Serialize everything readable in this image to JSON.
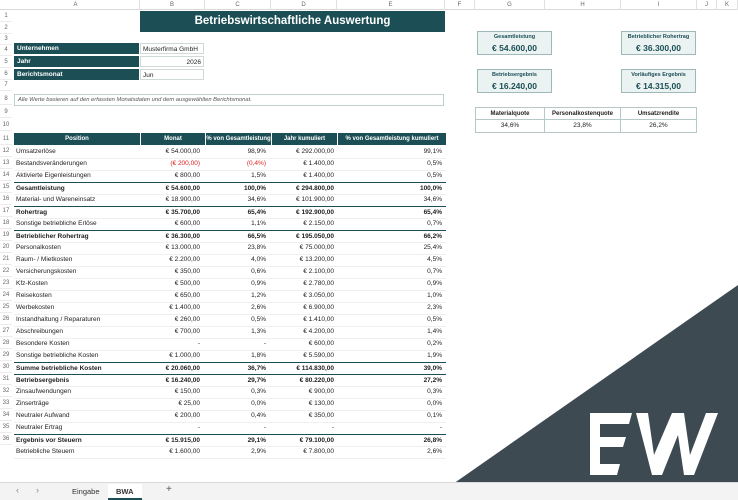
{
  "columns": [
    "A",
    "B",
    "C",
    "D",
    "E",
    "F",
    "G",
    "H",
    "I",
    "J",
    "K"
  ],
  "rows": [
    "1",
    "2",
    "3",
    "4",
    "5",
    "6",
    "7",
    "8",
    "9",
    "10",
    "11",
    "12",
    "13",
    "14",
    "15",
    "16",
    "17",
    "18",
    "19",
    "20",
    "21",
    "22",
    "23",
    "24",
    "25",
    "26",
    "27",
    "28",
    "29",
    "30",
    "31",
    "32",
    "33",
    "34",
    "35",
    "36"
  ],
  "title": "Betriebswirtschaftliche Auswertung",
  "meta": {
    "company_label": "Unternehmen",
    "company_value": "Musterfirma GmbH",
    "year_label": "Jahr",
    "year_value": "2026",
    "month_label": "Berichtsmonat",
    "month_value": "Jun"
  },
  "note": "Alle Werte basieren auf den erfassten Monatsdaten und dem ausgewählten Berichtsmonat.",
  "kpis": {
    "gesamtleistung": {
      "label": "Gesamtleistung",
      "value": "€ 54.600,00"
    },
    "rohertrag": {
      "label": "Betrieblicher Rohertrag",
      "value": "€ 36.300,00"
    },
    "betriebsergebnis": {
      "label": "Betriebsergebnis",
      "value": "€ 16.240,00"
    },
    "vorlaeufig": {
      "label": "Vorläufiges Ergebnis",
      "value": "€ 14.315,00"
    }
  },
  "quotes": [
    {
      "label": "Materialquote",
      "value": "34,6%"
    },
    {
      "label": "Personalkostenquote",
      "value": "23,8%"
    },
    {
      "label": "Umsatzrendite",
      "value": "26,2%"
    }
  ],
  "table_headers": [
    "Position",
    "Monat",
    "% von Gesamtleistung",
    "Jahr kumuliert",
    "% von Gesamtleistung kumuliert"
  ],
  "table_rows": [
    {
      "pos": "Umsatzerlöse",
      "monat": "€ 54.000,00",
      "pct": "98,9%",
      "jahr": "€ 292.000,00",
      "pctk": "99,1%"
    },
    {
      "pos": "Bestandsveränderungen",
      "monat": "(€ 200,00)",
      "pct": "(0,4%)",
      "jahr": "€ 1.400,00",
      "pctk": "0,5%"
    },
    {
      "pos": "Aktivierte Eigenleistungen",
      "monat": "€ 800,00",
      "pct": "1,5%",
      "jahr": "€ 1.400,00",
      "pctk": "0,5%"
    },
    {
      "pos": "Gesamtleistung",
      "monat": "€ 54.600,00",
      "pct": "100,0%",
      "jahr": "€ 294.800,00",
      "pctk": "100,0%"
    },
    {
      "pos": "Material- und Wareneinsatz",
      "monat": "€ 18.900,00",
      "pct": "34,6%",
      "jahr": "€ 101.900,00",
      "pctk": "34,6%"
    },
    {
      "pos": "Rohertrag",
      "monat": "€ 35.700,00",
      "pct": "65,4%",
      "jahr": "€ 192.900,00",
      "pctk": "65,4%"
    },
    {
      "pos": "Sonstige betriebliche Erlöse",
      "monat": "€ 600,00",
      "pct": "1,1%",
      "jahr": "€ 2.150,00",
      "pctk": "0,7%"
    },
    {
      "pos": "Betrieblicher Rohertrag",
      "monat": "€ 36.300,00",
      "pct": "66,5%",
      "jahr": "€ 195.050,00",
      "pctk": "66,2%"
    },
    {
      "pos": "Personalkosten",
      "monat": "€ 13.000,00",
      "pct": "23,8%",
      "jahr": "€ 75.000,00",
      "pctk": "25,4%"
    },
    {
      "pos": "Raum- / Mietkosten",
      "monat": "€ 2.200,00",
      "pct": "4,0%",
      "jahr": "€ 13.200,00",
      "pctk": "4,5%"
    },
    {
      "pos": "Versicherungskosten",
      "monat": "€ 350,00",
      "pct": "0,6%",
      "jahr": "€ 2.100,00",
      "pctk": "0,7%"
    },
    {
      "pos": "Kfz-Kosten",
      "monat": "€ 500,00",
      "pct": "0,9%",
      "jahr": "€ 2.780,00",
      "pctk": "0,9%"
    },
    {
      "pos": "Reisekosten",
      "monat": "€ 650,00",
      "pct": "1,2%",
      "jahr": "€ 3.050,00",
      "pctk": "1,0%"
    },
    {
      "pos": "Werbekosten",
      "monat": "€ 1.400,00",
      "pct": "2,6%",
      "jahr": "€ 6.900,00",
      "pctk": "2,3%"
    },
    {
      "pos": "Instandhaltung / Reparaturen",
      "monat": "€ 260,00",
      "pct": "0,5%",
      "jahr": "€ 1.410,00",
      "pctk": "0,5%"
    },
    {
      "pos": "Abschreibungen",
      "monat": "€ 700,00",
      "pct": "1,3%",
      "jahr": "€ 4.200,00",
      "pctk": "1,4%"
    },
    {
      "pos": "Besondere Kosten",
      "monat": "-",
      "pct": "-",
      "jahr": "€ 600,00",
      "pctk": "0,2%"
    },
    {
      "pos": "Sonstige betriebliche Kosten",
      "monat": "€ 1.000,00",
      "pct": "1,8%",
      "jahr": "€ 5.590,00",
      "pctk": "1,9%"
    },
    {
      "pos": "Summe betriebliche Kosten",
      "monat": "€ 20.060,00",
      "pct": "36,7%",
      "jahr": "€ 114.830,00",
      "pctk": "39,0%"
    },
    {
      "pos": "Betriebsergebnis",
      "monat": "€ 16.240,00",
      "pct": "29,7%",
      "jahr": "€ 80.220,00",
      "pctk": "27,2%"
    },
    {
      "pos": "Zinsaufwendungen",
      "monat": "€ 150,00",
      "pct": "0,3%",
      "jahr": "€ 900,00",
      "pctk": "0,3%"
    },
    {
      "pos": "Zinserträge",
      "monat": "€ 25,00",
      "pct": "0,0%",
      "jahr": "€ 130,00",
      "pctk": "0,0%"
    },
    {
      "pos": "Neutraler Aufwand",
      "monat": "€ 200,00",
      "pct": "0,4%",
      "jahr": "€ 350,00",
      "pctk": "0,1%"
    },
    {
      "pos": "Neutraler Ertrag",
      "monat": "-",
      "pct": "-",
      "jahr": "-",
      "pctk": "-"
    },
    {
      "pos": "Ergebnis vor Steuern",
      "monat": "€ 15.915,00",
      "pct": "29,1%",
      "jahr": "€ 79.100,00",
      "pctk": "26,8%"
    },
    {
      "pos": "Betriebliche Steuern",
      "monat": "€ 1.600,00",
      "pct": "2,9%",
      "jahr": "€ 7.800,00",
      "pctk": "2,6%"
    }
  ],
  "tabs": {
    "nav_prev": "‹",
    "nav_next": "›",
    "tab1": "Eingabe",
    "tab2": "BWA",
    "add": "+"
  },
  "logo_text": "EW",
  "colors": {
    "accent": "#1c4f55",
    "negative": "#e02020",
    "overlay": "#3e4a52"
  }
}
